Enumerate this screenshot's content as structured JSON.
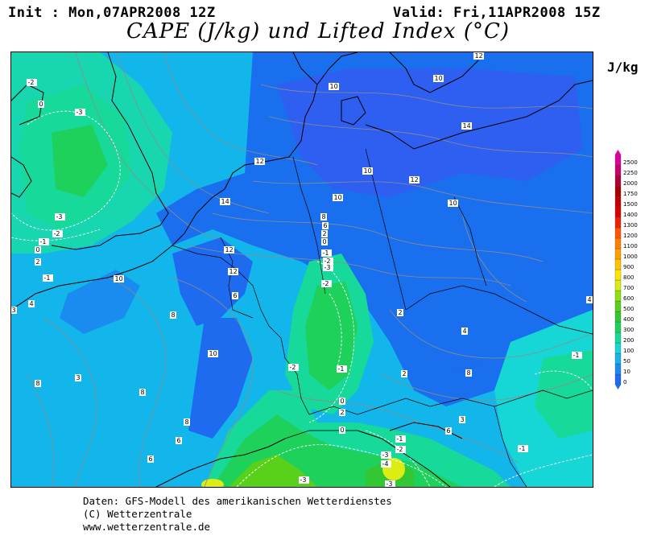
{
  "header": {
    "init": "Init : Mon,07APR2008 12Z",
    "valid": "Valid: Fri,11APR2008 15Z",
    "title": "CAPE (J/kg) und Lifted Index (°C)"
  },
  "legend": {
    "unit": "J/kg",
    "levels": [
      "0",
      "10",
      "50",
      "100",
      "200",
      "300",
      "400",
      "500",
      "600",
      "700",
      "800",
      "900",
      "1000",
      "1100",
      "1200",
      "1300",
      "1400",
      "1500",
      "1750",
      "2000",
      "2250",
      "2500"
    ],
    "colors": [
      "#1e6bf0",
      "#1a8cf0",
      "#16b4ea",
      "#17d6d6",
      "#16d99a",
      "#1ed15a",
      "#33c833",
      "#59d11a",
      "#8ee010",
      "#ddec12",
      "#ffe600",
      "#ffc400",
      "#ff9f00",
      "#ff8000",
      "#ff5500",
      "#ee2200",
      "#dd0000",
      "#c40000",
      "#a80000",
      "#b0003c",
      "#c80070",
      "#e000a0"
    ]
  },
  "map": {
    "background_color": "#12b6ea",
    "lifted_index_labels": [
      "-2",
      "0",
      "-3",
      "-3",
      "-1",
      "-2",
      "0",
      "2",
      "-1",
      "4",
      "3",
      "12",
      "10",
      "14",
      "12",
      "10",
      "12",
      "10",
      "12",
      "14",
      "10",
      "10",
      "8",
      "6",
      "2",
      "0",
      "-1",
      "-2",
      "-3",
      "-2",
      "-2",
      "-1",
      "0",
      "2",
      "0",
      "-1",
      "-2",
      "-3",
      "-4",
      "-3",
      "-3",
      "8",
      "3",
      "8",
      "10",
      "8",
      "6",
      "10",
      "12",
      "6",
      "4",
      "2",
      "4",
      "8",
      "2",
      "-1",
      "-1",
      "3",
      "6",
      "6",
      "8"
    ]
  },
  "footer": {
    "line1": "Daten: GFS-Modell des amerikanischen Wetterdienstes",
    "line2": "(C) Wetterzentrale",
    "line3": "www.wetterzentrale.de"
  }
}
